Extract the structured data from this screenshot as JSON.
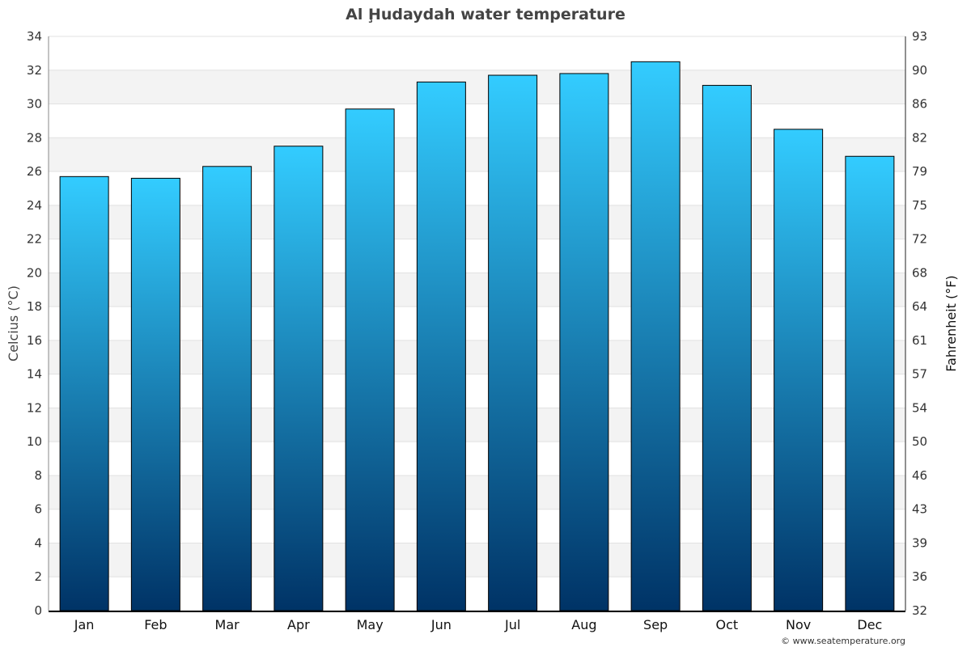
{
  "chart_data": {
    "type": "bar",
    "title": "Al Ḩudaydah water temperature",
    "ylabel": "Celcius (°C)",
    "ylabel_right": "Fahrenheit (°F)",
    "categories": [
      "Jan",
      "Feb",
      "Mar",
      "Apr",
      "May",
      "Jun",
      "Jul",
      "Aug",
      "Sep",
      "Oct",
      "Nov",
      "Dec"
    ],
    "values": [
      25.7,
      25.6,
      26.3,
      27.5,
      29.7,
      31.3,
      31.7,
      31.8,
      32.5,
      31.1,
      28.5,
      26.9
    ],
    "ylim": [
      0,
      34
    ],
    "yticks": [
      0,
      2,
      4,
      6,
      8,
      10,
      12,
      14,
      16,
      18,
      20,
      22,
      24,
      26,
      28,
      30,
      32,
      34
    ],
    "yticks_right": [
      "32",
      "36",
      "39",
      "43",
      "46",
      "50",
      "54",
      "57",
      "61",
      "64",
      "68",
      "72",
      "75",
      "79",
      "82",
      "86",
      "90",
      "93"
    ],
    "grid": true,
    "bar_gradient": [
      "#33ccff",
      "#003366"
    ]
  },
  "credit": "© www.seatemperature.org"
}
